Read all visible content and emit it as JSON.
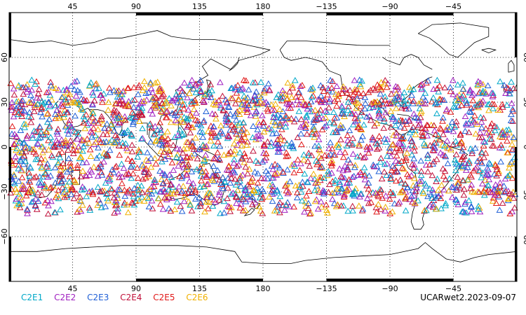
{
  "map": {
    "projection": "cylindrical-equidistant",
    "center_longitude": 180,
    "lon_range": [
      0,
      360
    ],
    "lat_range": [
      -90,
      90
    ],
    "gridlines": "dotted",
    "lon_ticks": [
      {
        "lon": 45,
        "label": "45"
      },
      {
        "lon": 90,
        "label": "90"
      },
      {
        "lon": 135,
        "label": "135"
      },
      {
        "lon": 180,
        "label": "180"
      },
      {
        "lon": 225,
        "label": "−135"
      },
      {
        "lon": 270,
        "label": "−90"
      },
      {
        "lon": 315,
        "label": "−45"
      }
    ],
    "lat_ticks": [
      {
        "lat": 60,
        "label": "60"
      },
      {
        "lat": 30,
        "label": "30"
      },
      {
        "lat": 0,
        "label": "0"
      },
      {
        "lat": -30,
        "label": "−30"
      },
      {
        "lat": -60,
        "label": "−60"
      }
    ],
    "observation_lat_band": [
      -45,
      45
    ],
    "marker": "open-triangle"
  },
  "legend": [
    {
      "name": "C2E1",
      "color": "#00a8c8"
    },
    {
      "name": "C2E2",
      "color": "#a020c0"
    },
    {
      "name": "C2E3",
      "color": "#1f5fd6"
    },
    {
      "name": "C2E4",
      "color": "#c0103a"
    },
    {
      "name": "C2E5",
      "color": "#e01818"
    },
    {
      "name": "C2E6",
      "color": "#f0b000"
    }
  ],
  "caption": "UCARwet2.2023-09-07"
}
